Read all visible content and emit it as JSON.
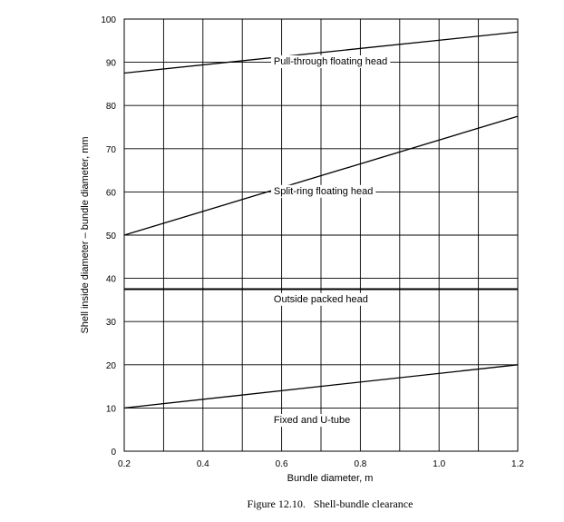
{
  "chart_data": {
    "type": "line",
    "caption": "Figure 12.10.   Shell-bundle clearance",
    "xlabel": "Bundle diameter, m",
    "ylabel": "Shell inside diameter – bundle diameter, mm",
    "xlim": [
      0.2,
      1.2
    ],
    "ylim": [
      0,
      100
    ],
    "x_ticks": [
      0.2,
      0.4,
      0.6,
      0.8,
      1.0,
      1.2
    ],
    "x_tick_labels": [
      "0.2",
      "0.4",
      "0.6",
      "0.8",
      "1.0",
      "1.2"
    ],
    "y_ticks": [
      0,
      10,
      20,
      30,
      40,
      50,
      60,
      70,
      80,
      90,
      100
    ],
    "y_tick_labels": [
      "0",
      "10",
      "20",
      "30",
      "40",
      "50",
      "60",
      "70",
      "80",
      "90",
      "100"
    ],
    "grid": true,
    "series": [
      {
        "name": "Pull-through floating head",
        "x": [
          0.2,
          1.2
        ],
        "y": [
          87.5,
          97
        ]
      },
      {
        "name": "Split-ring floating head",
        "x": [
          0.2,
          1.2
        ],
        "y": [
          50,
          77.5
        ]
      },
      {
        "name": "Outside packed head",
        "x": [
          0.2,
          1.2
        ],
        "y": [
          37.5,
          37.5
        ]
      },
      {
        "name": "Fixed and U-tube",
        "x": [
          0.2,
          1.2
        ],
        "y": [
          10,
          20
        ]
      }
    ],
    "series_label_positions": [
      {
        "x": 0.58,
        "y": 89.5
      },
      {
        "x": 0.58,
        "y": 59.5
      },
      {
        "x": 0.58,
        "y": 34.5
      },
      {
        "x": 0.58,
        "y": 6.5
      }
    ]
  }
}
